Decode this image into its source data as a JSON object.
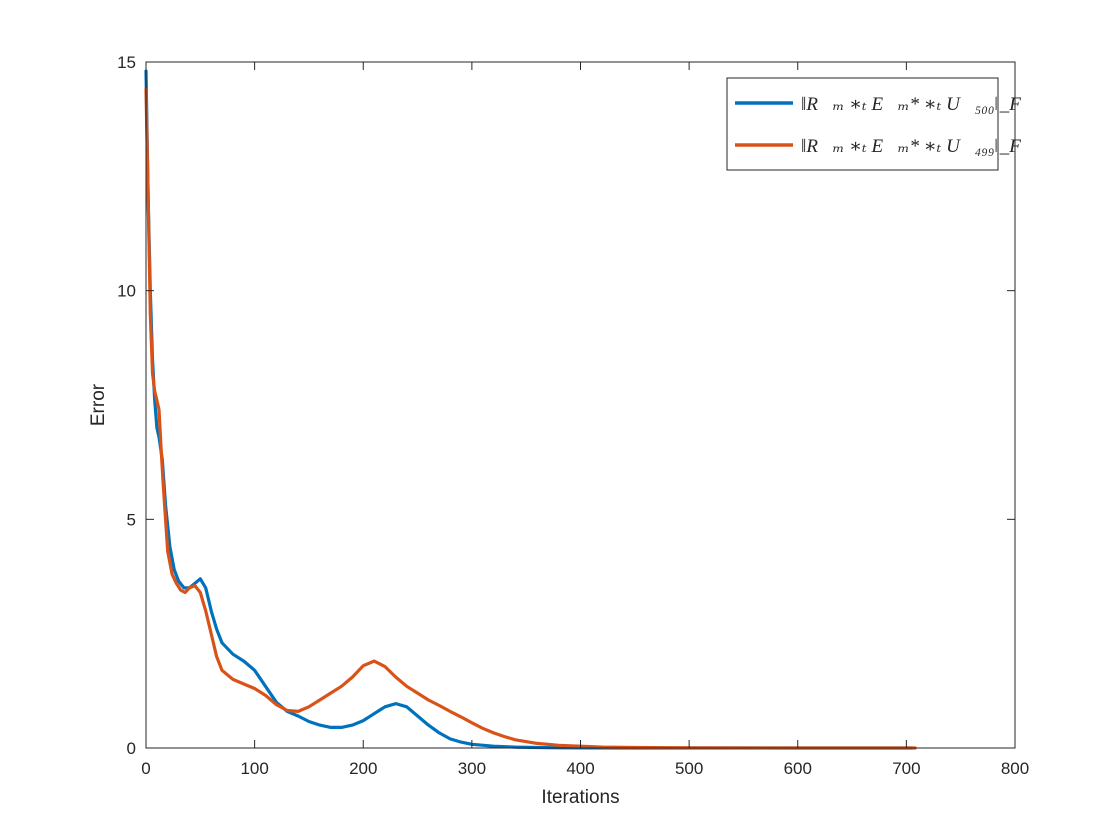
{
  "chart_data": {
    "type": "line",
    "title": "",
    "xlabel": "Iterations",
    "ylabel": "Error",
    "xlim": [
      0,
      800
    ],
    "ylim": [
      0,
      15
    ],
    "xticks": [
      "0",
      "100",
      "200",
      "300",
      "400",
      "500",
      "600",
      "700",
      "800"
    ],
    "yticks": [
      "0",
      "5",
      "10",
      "15"
    ],
    "grid": false,
    "legend_position": "top-right",
    "series": [
      {
        "name": "‖R⃗ₘ ∗ₜ E⃗ₘ* ∗ₜ U⃗₅₀₀‖_F",
        "color": "#0072BD",
        "points": [
          [
            0,
            14.8
          ],
          [
            2,
            12.0
          ],
          [
            4,
            10.0
          ],
          [
            6,
            8.5
          ],
          [
            8,
            7.6
          ],
          [
            10,
            7.0
          ],
          [
            12,
            6.8
          ],
          [
            15,
            6.3
          ],
          [
            18,
            5.3
          ],
          [
            22,
            4.4
          ],
          [
            26,
            3.9
          ],
          [
            30,
            3.65
          ],
          [
            35,
            3.5
          ],
          [
            40,
            3.5
          ],
          [
            45,
            3.6
          ],
          [
            50,
            3.7
          ],
          [
            55,
            3.5
          ],
          [
            60,
            3.0
          ],
          [
            65,
            2.6
          ],
          [
            70,
            2.3
          ],
          [
            80,
            2.05
          ],
          [
            90,
            1.9
          ],
          [
            100,
            1.7
          ],
          [
            110,
            1.35
          ],
          [
            120,
            1.0
          ],
          [
            130,
            0.8
          ],
          [
            140,
            0.7
          ],
          [
            150,
            0.58
          ],
          [
            160,
            0.5
          ],
          [
            170,
            0.45
          ],
          [
            180,
            0.45
          ],
          [
            190,
            0.5
          ],
          [
            200,
            0.6
          ],
          [
            210,
            0.75
          ],
          [
            220,
            0.9
          ],
          [
            230,
            0.97
          ],
          [
            240,
            0.9
          ],
          [
            250,
            0.7
          ],
          [
            260,
            0.5
          ],
          [
            270,
            0.33
          ],
          [
            280,
            0.2
          ],
          [
            290,
            0.13
          ],
          [
            300,
            0.08
          ],
          [
            320,
            0.04
          ],
          [
            340,
            0.02
          ],
          [
            360,
            0.01
          ],
          [
            380,
            0.005
          ],
          [
            400,
            0.003
          ],
          [
            450,
            0.001
          ],
          [
            500,
            0.0
          ],
          [
            600,
            0.0
          ],
          [
            700,
            0.0
          ],
          [
            705,
            0.0
          ]
        ]
      },
      {
        "name": "‖R⃗ₘ ∗ₜ E⃗ₘ* ∗ₜ U⃗₄₉₉‖_F",
        "color": "#D95319",
        "points": [
          [
            0,
            14.4
          ],
          [
            2,
            12.0
          ],
          [
            4,
            9.5
          ],
          [
            6,
            8.2
          ],
          [
            8,
            7.8
          ],
          [
            10,
            7.6
          ],
          [
            12,
            7.4
          ],
          [
            14,
            6.5
          ],
          [
            16,
            5.7
          ],
          [
            20,
            4.3
          ],
          [
            24,
            3.8
          ],
          [
            28,
            3.6
          ],
          [
            32,
            3.45
          ],
          [
            36,
            3.4
          ],
          [
            40,
            3.5
          ],
          [
            45,
            3.55
          ],
          [
            50,
            3.4
          ],
          [
            55,
            3.0
          ],
          [
            60,
            2.5
          ],
          [
            65,
            2.0
          ],
          [
            70,
            1.7
          ],
          [
            80,
            1.5
          ],
          [
            90,
            1.4
          ],
          [
            100,
            1.3
          ],
          [
            110,
            1.15
          ],
          [
            120,
            0.95
          ],
          [
            130,
            0.82
          ],
          [
            140,
            0.8
          ],
          [
            150,
            0.9
          ],
          [
            160,
            1.05
          ],
          [
            170,
            1.2
          ],
          [
            180,
            1.35
          ],
          [
            190,
            1.55
          ],
          [
            200,
            1.8
          ],
          [
            210,
            1.9
          ],
          [
            220,
            1.78
          ],
          [
            230,
            1.55
          ],
          [
            240,
            1.35
          ],
          [
            250,
            1.2
          ],
          [
            260,
            1.05
          ],
          [
            270,
            0.93
          ],
          [
            280,
            0.8
          ],
          [
            290,
            0.68
          ],
          [
            300,
            0.55
          ],
          [
            310,
            0.43
          ],
          [
            320,
            0.33
          ],
          [
            330,
            0.25
          ],
          [
            340,
            0.18
          ],
          [
            360,
            0.1
          ],
          [
            380,
            0.06
          ],
          [
            400,
            0.04
          ],
          [
            420,
            0.02
          ],
          [
            450,
            0.01
          ],
          [
            500,
            0.005
          ],
          [
            600,
            0.001
          ],
          [
            700,
            0.0
          ],
          [
            708,
            0.0
          ]
        ]
      }
    ]
  }
}
